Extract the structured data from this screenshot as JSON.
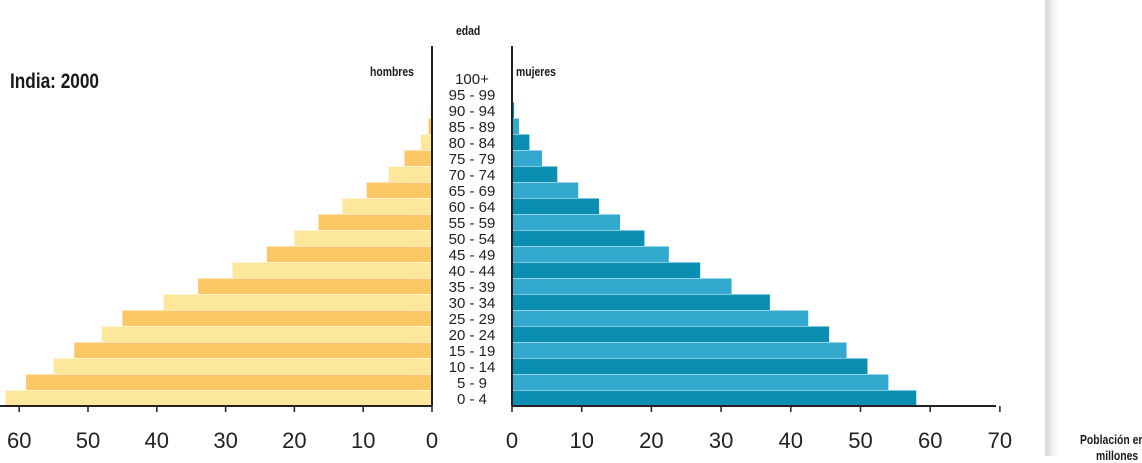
{
  "chart_data": {
    "type": "bar",
    "orientation": "horizontal",
    "title": "India: 2000",
    "center_label": "edad",
    "categories": [
      "0 - 4",
      "5 - 9",
      "10 - 14",
      "15 - 19",
      "20 - 24",
      "25 - 29",
      "30 - 34",
      "35 - 39",
      "40 - 44",
      "45 - 49",
      "50 - 54",
      "55 - 59",
      "60 - 64",
      "65 - 69",
      "70 - 74",
      "75 - 79",
      "80 - 84",
      "85 - 89",
      "90 - 94",
      "95 - 99",
      "100+"
    ],
    "series": [
      {
        "name": "hombres",
        "side": "left",
        "values": [
          62,
          59,
          55,
          52,
          48,
          45,
          39,
          34,
          29,
          24,
          20,
          16.5,
          13,
          9.5,
          6.3,
          4,
          1.6,
          0.5,
          0.2,
          0.1,
          0.1
        ]
      },
      {
        "name": "mujeres",
        "side": "right",
        "values": [
          58,
          54,
          51,
          48,
          45.5,
          42.5,
          37,
          31.5,
          27,
          22.5,
          19,
          15.5,
          12.5,
          9.5,
          6.5,
          4.3,
          2.5,
          1,
          0.3,
          0.1,
          0.1
        ]
      }
    ],
    "left_axis": {
      "ticks": [
        "60",
        "50",
        "40",
        "30",
        "20",
        "10",
        "0"
      ],
      "xlim": [
        0,
        62
      ]
    },
    "right_axis": {
      "ticks": [
        "0",
        "10",
        "20",
        "30",
        "40",
        "50",
        "60",
        "70"
      ],
      "xlim": [
        0,
        70
      ]
    },
    "xlabel_line1": "Población en",
    "xlabel_line2": "millones",
    "colors": {
      "hombres_light": "#fde79a",
      "hombres_dark": "#fbc865",
      "mujeres_light": "#33a9cd",
      "mujeres_dark": "#0a8fb2",
      "axis": "#222222"
    },
    "grid": false
  }
}
